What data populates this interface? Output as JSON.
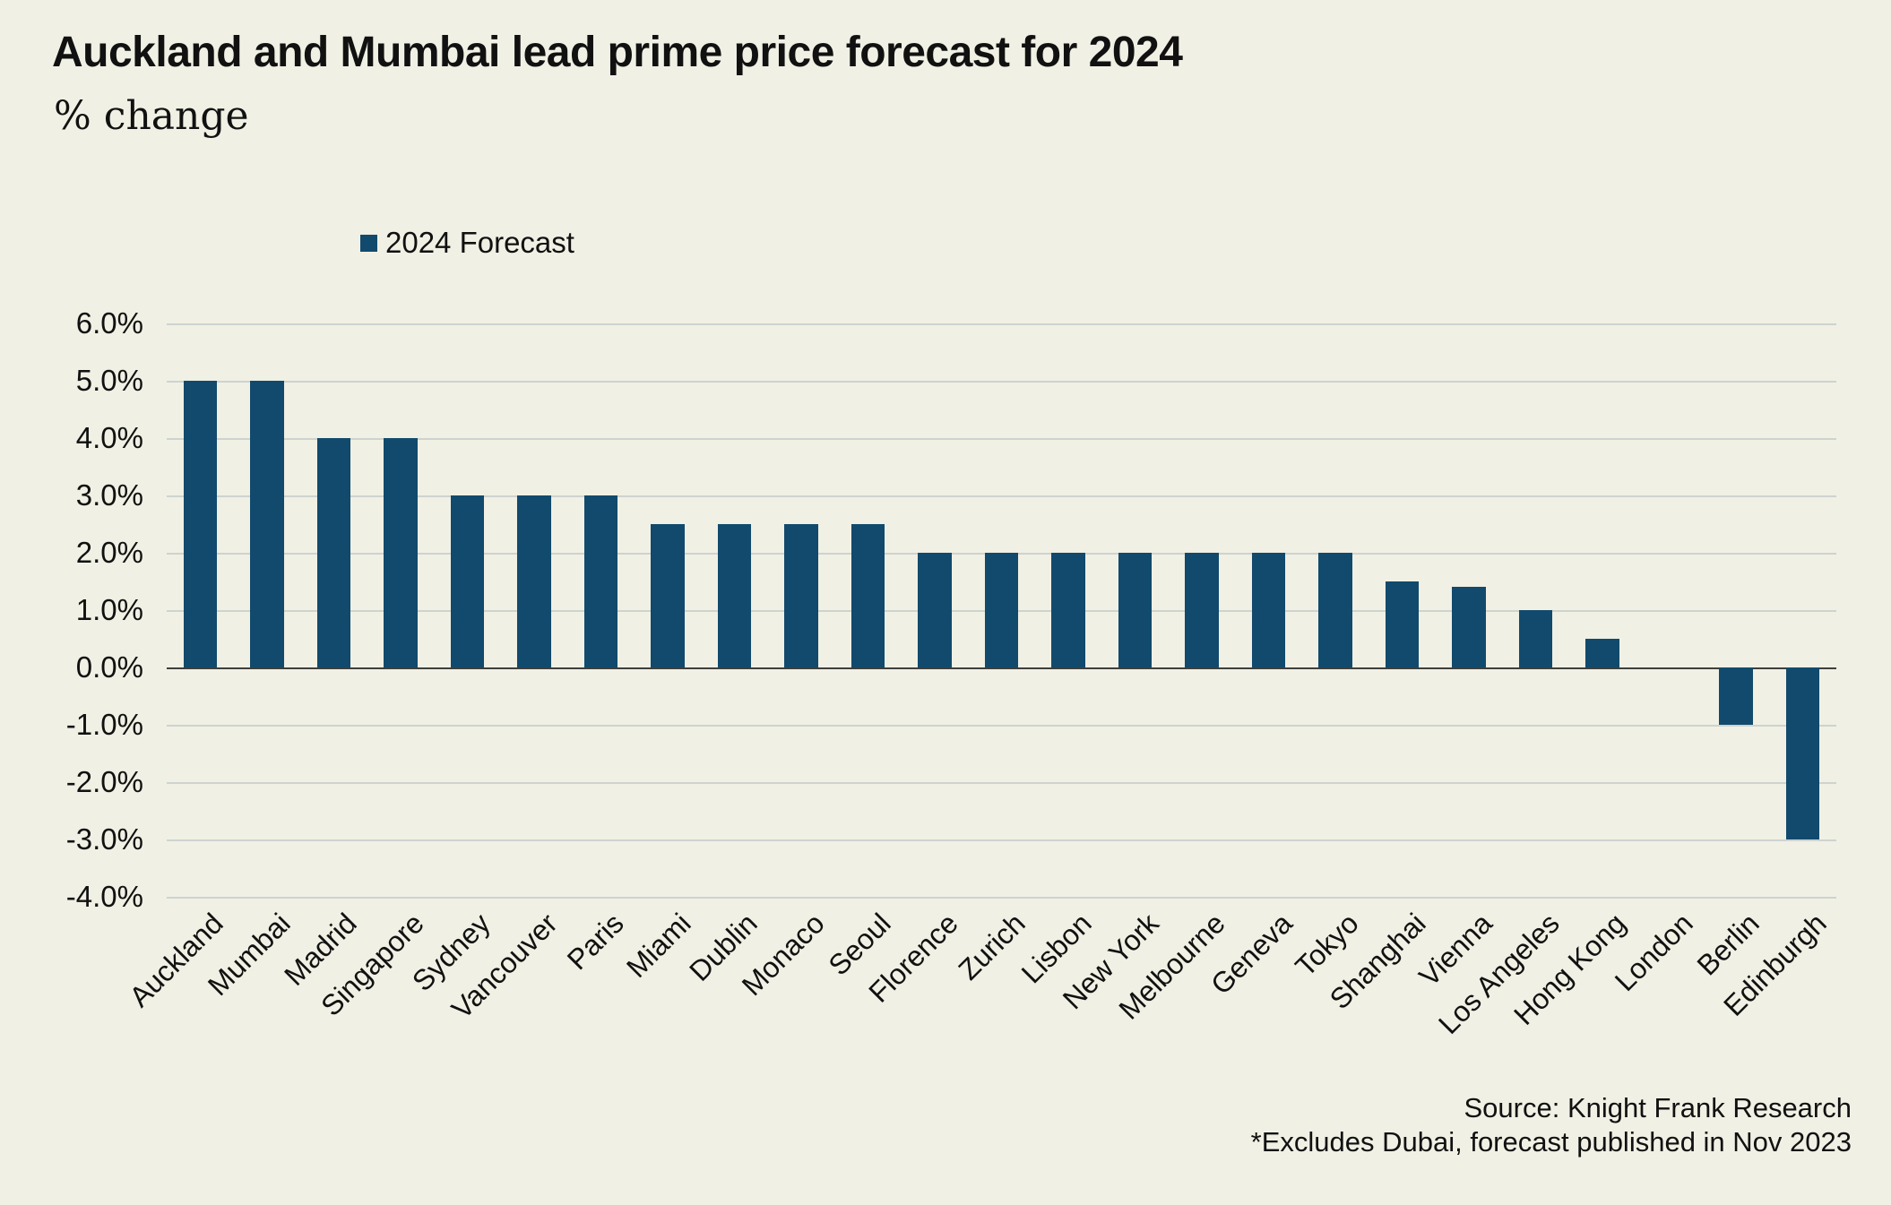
{
  "header": {
    "title": "Auckland and Mumbai lead prime price forecast for 2024",
    "subtitle": "% change"
  },
  "legend": {
    "label": "2024 Forecast"
  },
  "footer": {
    "source": "Source: Knight Frank Research",
    "note": "*Excludes Dubai, forecast published in Nov 2023"
  },
  "colors": {
    "background": "#F0F0E4",
    "bar": "#114A6D",
    "gridline": "#CED3CF",
    "zero_line": "#3F3F3C",
    "text": "#111111"
  },
  "chart_data": {
    "type": "bar",
    "title": "Auckland and Mumbai lead prime price forecast for 2024",
    "ylabel_unit": "% change",
    "categories": [
      "Auckland",
      "Mumbai",
      "Madrid",
      "Singapore",
      "Sydney",
      "Vancouver",
      "Paris",
      "Miami",
      "Dublin",
      "Monaco",
      "Seoul",
      "Florence",
      "Zurich",
      "Lisbon",
      "New York",
      "Melbourne",
      "Geneva",
      "Tokyo",
      "Shanghai",
      "Vienna",
      "Los Angeles",
      "Hong Kong",
      "London",
      "Berlin",
      "Edinburgh"
    ],
    "series": [
      {
        "name": "2024 Forecast",
        "values": [
          5.0,
          5.0,
          4.0,
          4.0,
          3.0,
          3.0,
          3.0,
          2.5,
          2.5,
          2.5,
          2.5,
          2.0,
          2.0,
          2.0,
          2.0,
          2.0,
          2.0,
          2.0,
          1.5,
          1.4,
          1.0,
          0.5,
          0.0,
          -1.0,
          -3.0
        ]
      }
    ],
    "ylim": [
      -4.0,
      6.0
    ],
    "ytick_step": 1.0,
    "yticks": [
      "6.0%",
      "5.0%",
      "4.0%",
      "3.0%",
      "2.0%",
      "1.0%",
      "0.0%",
      "-1.0%",
      "-2.0%",
      "-3.0%",
      "-4.0%"
    ],
    "grid": true,
    "legend_position": "top-inset",
    "xlabel_rotation_deg": 45
  }
}
